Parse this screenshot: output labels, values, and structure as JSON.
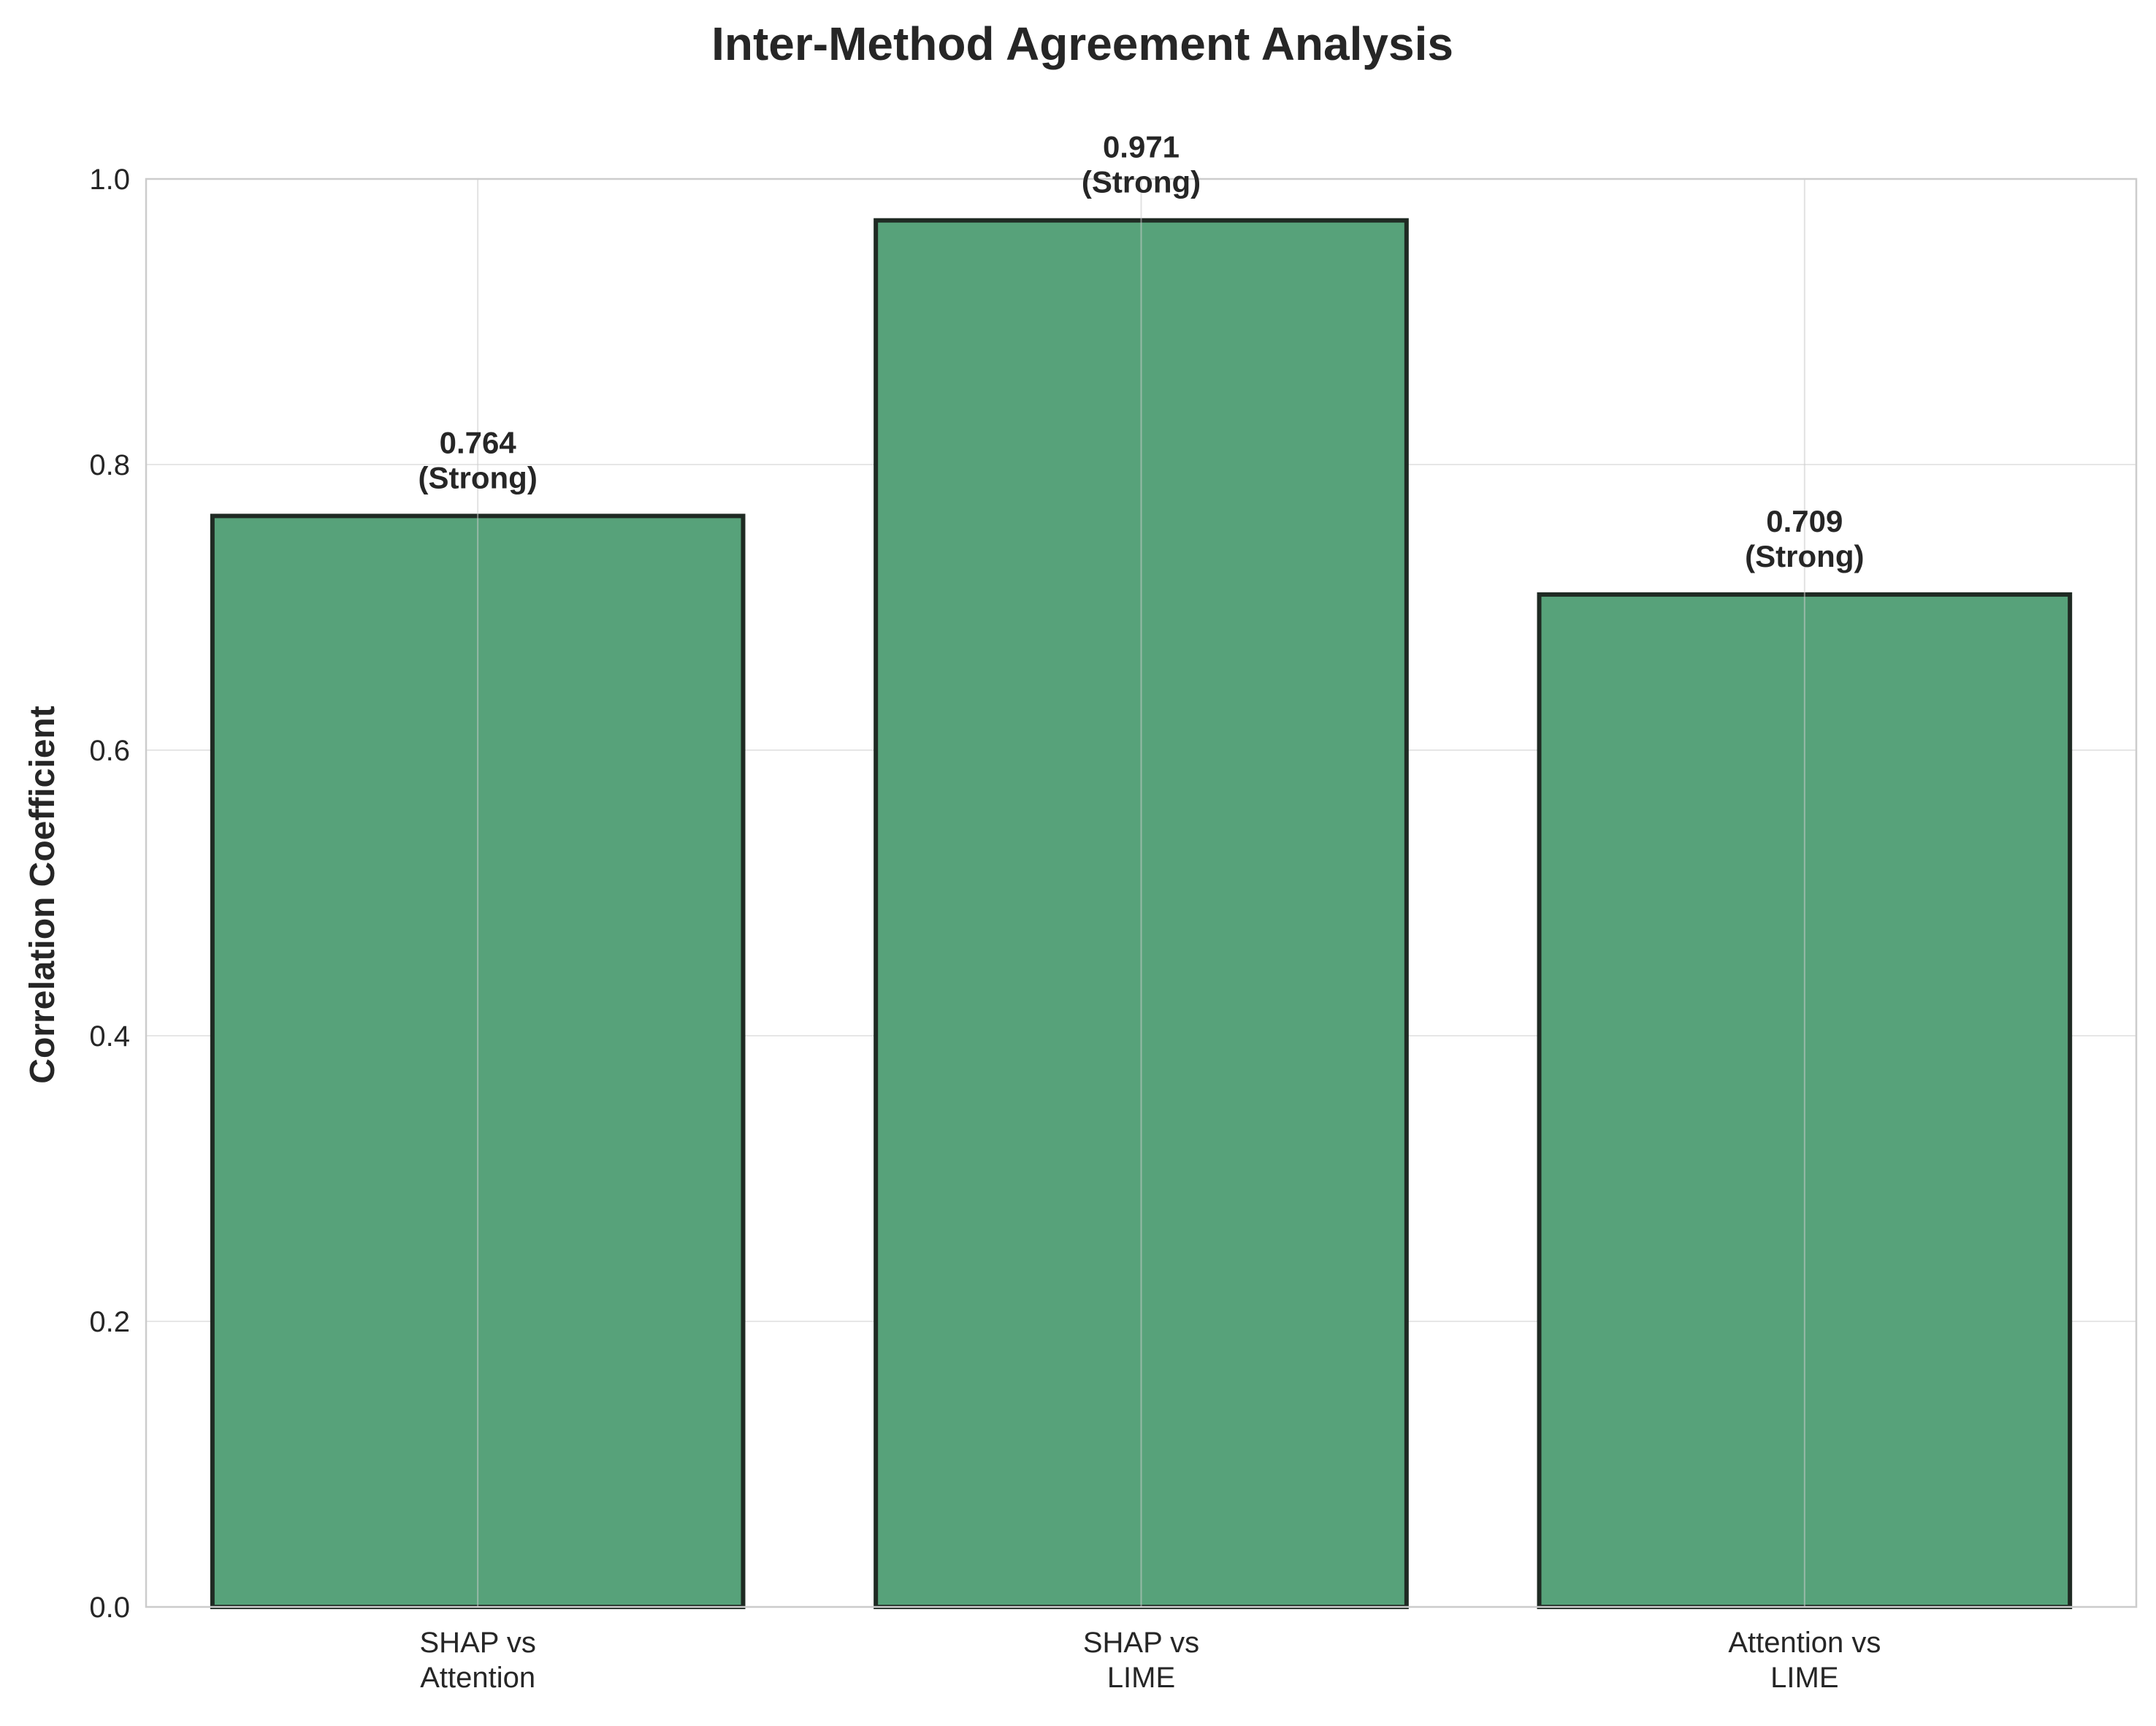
{
  "chart_data": {
    "type": "bar",
    "title": "Inter-Method Agreement Analysis",
    "xlabel": "",
    "ylabel": "Correlation Coefficient",
    "categories": [
      "SHAP vs\nAttention",
      "SHAP vs\nLIME",
      "Attention vs\nLIME"
    ],
    "values": [
      0.764,
      0.971,
      0.709
    ],
    "value_labels": [
      "0.764",
      "0.971",
      "0.709"
    ],
    "strength_labels": [
      "(Strong)",
      "(Strong)",
      "(Strong)"
    ],
    "ylim": [
      0,
      1.0
    ],
    "yticks": [
      "0.0",
      "0.2",
      "0.4",
      "0.6",
      "0.8",
      "1.0"
    ],
    "grid": true,
    "colors": {
      "bar_fill": "#57a27a",
      "bar_edge": "#1f2a23",
      "grid": "#e6e6e6",
      "grid_vertical": "#cccccc",
      "axes_edge": "#cccccc",
      "text": "#262626"
    }
  }
}
